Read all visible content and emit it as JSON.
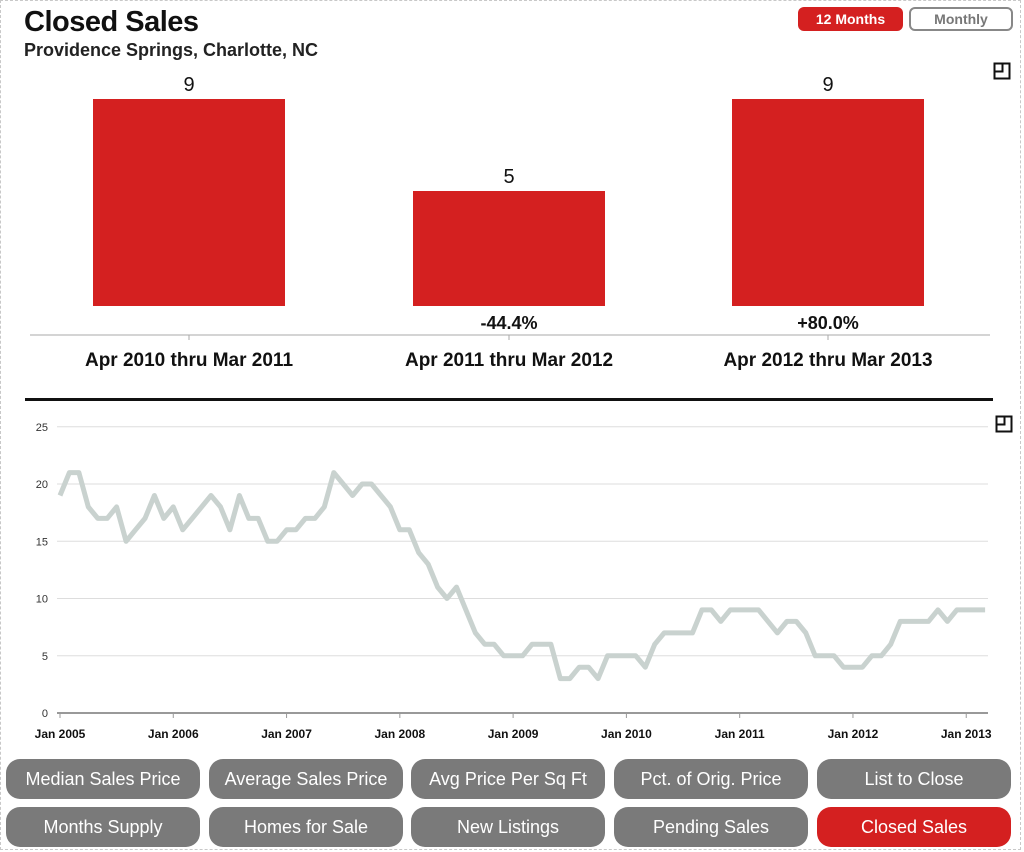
{
  "header": {
    "title": "Closed Sales",
    "subtitle": "Providence Springs, Charlotte, NC",
    "toggle_12_months": "12 Months",
    "toggle_monthly": "Monthly",
    "active_toggle": "12 Months"
  },
  "colors": {
    "accent": "#d42020",
    "button": "#7a7a7a",
    "line": "#c9d2cf"
  },
  "icons": {
    "expand": "expand-icon"
  },
  "chart_data": [
    {
      "type": "bar",
      "categories": [
        "Apr 2010 thru Mar 2011",
        "Apr 2011 thru Mar 2012",
        "Apr 2012 thru Mar 2013"
      ],
      "values": [
        9,
        5,
        9
      ],
      "value_labels": [
        "9",
        "5",
        "9"
      ],
      "change_labels": [
        "",
        "-44.4%",
        "+80.0%"
      ],
      "ylim": [
        0,
        9
      ]
    },
    {
      "type": "line",
      "x_start": "Jan 2005",
      "x_end": "Mar 2013",
      "x_frequency": "monthly",
      "ylim": [
        0,
        25
      ],
      "y_ticks": [
        "0",
        "5",
        "10",
        "15",
        "20",
        "25"
      ],
      "x_ticks": [
        "Jan 2005",
        "Jan 2006",
        "Jan 2007",
        "Jan 2008",
        "Jan 2009",
        "Jan 2010",
        "Jan 2011",
        "Jan 2012",
        "Jan 2013"
      ],
      "grid": true,
      "values": [
        19,
        21,
        21,
        18,
        17,
        17,
        18,
        15,
        16,
        17,
        19,
        17,
        18,
        16,
        17,
        18,
        19,
        18,
        16,
        19,
        17,
        17,
        15,
        15,
        16,
        16,
        17,
        17,
        18,
        21,
        20,
        19,
        20,
        20,
        19,
        18,
        16,
        16,
        14,
        13,
        11,
        10,
        11,
        9,
        7,
        6,
        6,
        5,
        5,
        5,
        6,
        6,
        6,
        3,
        3,
        4,
        4,
        3,
        5,
        5,
        5,
        5,
        4,
        6,
        7,
        7,
        7,
        7,
        9,
        9,
        8,
        9,
        9,
        9,
        9,
        8,
        7,
        8,
        8,
        7,
        5,
        5,
        5,
        4,
        4,
        4,
        5,
        5,
        6,
        8,
        8,
        8,
        8,
        9,
        8,
        9,
        9,
        9,
        9
      ]
    }
  ],
  "metric_buttons": [
    {
      "label": "Median Sales Price",
      "active": false
    },
    {
      "label": "Average Sales Price",
      "active": false
    },
    {
      "label": "Avg Price Per Sq Ft",
      "active": false
    },
    {
      "label": "Pct. of Orig. Price",
      "active": false
    },
    {
      "label": "List to Close",
      "active": false
    },
    {
      "label": "Months Supply",
      "active": false
    },
    {
      "label": "Homes for Sale",
      "active": false
    },
    {
      "label": "New Listings",
      "active": false
    },
    {
      "label": "Pending Sales",
      "active": false
    },
    {
      "label": "Closed Sales",
      "active": true
    }
  ]
}
